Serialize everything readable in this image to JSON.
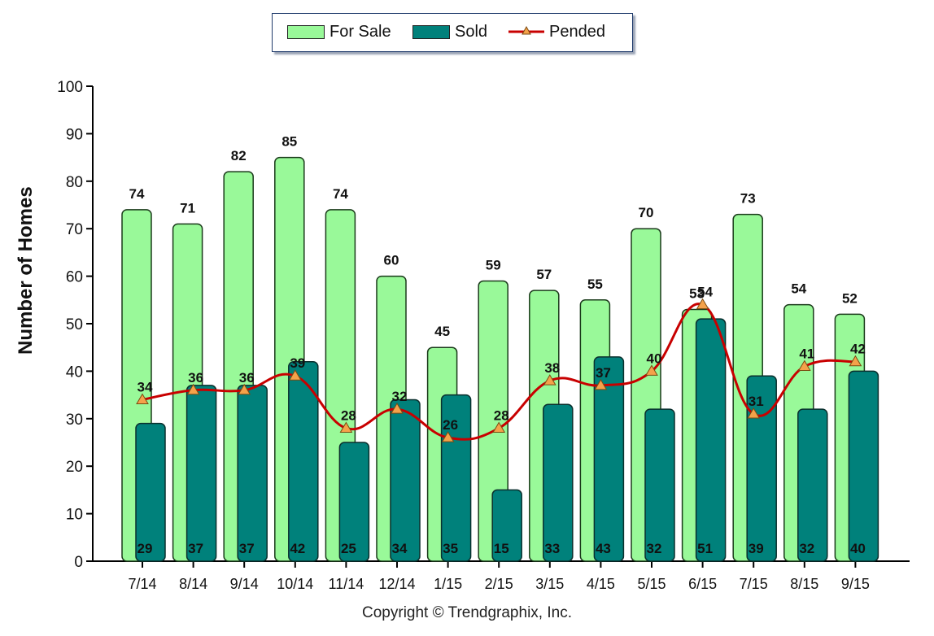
{
  "legend": {
    "for_sale": "For Sale",
    "sold": "Sold",
    "pended": "Pended"
  },
  "footer": "Copyright © Trendgraphix, Inc.",
  "chart_data": {
    "type": "bar",
    "ylabel": "Number of Homes",
    "xlabel": "",
    "ylim": [
      0,
      100
    ],
    "yticks": [
      0,
      10,
      20,
      30,
      40,
      50,
      60,
      70,
      80,
      90,
      100
    ],
    "categories": [
      "7/14",
      "8/14",
      "9/14",
      "10/14",
      "11/14",
      "12/14",
      "1/15",
      "2/15",
      "3/15",
      "4/15",
      "5/15",
      "6/15",
      "7/15",
      "8/15",
      "9/15"
    ],
    "series": [
      {
        "name": "For Sale",
        "kind": "bar",
        "values": [
          74,
          71,
          82,
          85,
          74,
          60,
          45,
          59,
          57,
          55,
          70,
          53,
          73,
          54,
          52
        ]
      },
      {
        "name": "Sold",
        "kind": "bar",
        "values": [
          29,
          37,
          37,
          42,
          25,
          34,
          35,
          15,
          33,
          43,
          32,
          51,
          39,
          32,
          40
        ]
      },
      {
        "name": "Pended",
        "kind": "line",
        "values": [
          34,
          36,
          36,
          39,
          28,
          32,
          26,
          28,
          38,
          37,
          40,
          54,
          31,
          41,
          42
        ]
      }
    ],
    "colors": {
      "for_sale": "#99f999",
      "sold": "#00817b",
      "pended": "#c80000",
      "marker": "#f4a24a"
    },
    "grid": false,
    "legend_position": "top-center"
  }
}
